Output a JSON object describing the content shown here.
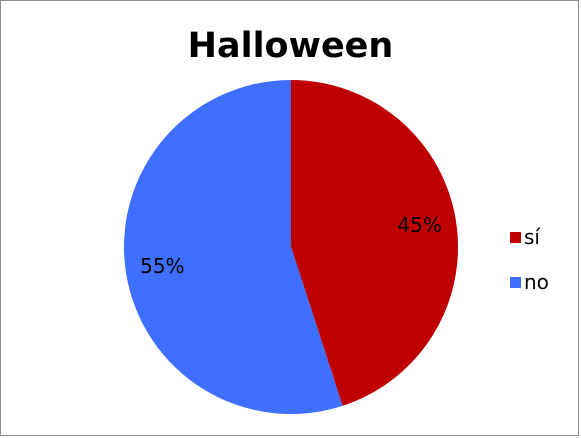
{
  "chart_data": {
    "type": "pie",
    "title": "Halloween",
    "categories": [
      "sí",
      "no"
    ],
    "values": [
      45,
      55
    ],
    "data_labels": [
      "45%",
      "55%"
    ],
    "colors": [
      "#c00000",
      "#3f6fff"
    ],
    "legend_position": "right"
  }
}
